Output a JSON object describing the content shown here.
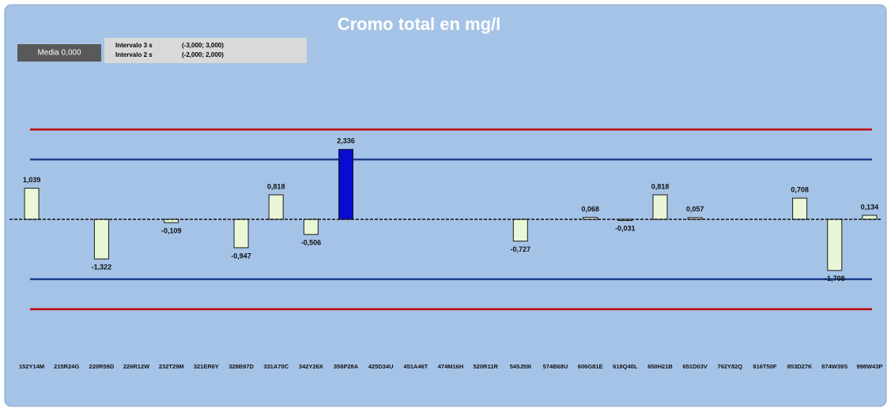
{
  "chart_data": {
    "type": "bar",
    "title": "Cromo total en mg/l",
    "mean_label": "Media 0,000",
    "mean": 0,
    "intervals": [
      {
        "label": "Intervalo 3 s",
        "range_label": "(-3,000; 3,000)",
        "low": -3,
        "high": 3,
        "color": "#c00000"
      },
      {
        "label": "Intervalo 2 s",
        "range_label": "(-2,000; 2,000)",
        "low": -2,
        "high": 2,
        "color": "#1f3f8f"
      }
    ],
    "categories": [
      "152Y14M",
      "215R24G",
      "220R59D",
      "226R12W",
      "232T29M",
      "321ER6Y",
      "328B97D",
      "331A70C",
      "342Y26X",
      "356P28A",
      "425D34U",
      "451A46T",
      "474M16H",
      "520R11R",
      "545J59I",
      "574B68U",
      "606G81E",
      "618Q40L",
      "650H21B",
      "651D03V",
      "762Y82Q",
      "816T50F",
      "853D27K",
      "874W39S",
      "998W43P"
    ],
    "values": [
      1.039,
      null,
      -1.322,
      null,
      -0.109,
      null,
      -0.947,
      0.818,
      -0.506,
      2.336,
      null,
      null,
      null,
      null,
      -0.727,
      null,
      0.068,
      -0.031,
      0.818,
      0.057,
      null,
      null,
      0.708,
      -1.708,
      0.134
    ],
    "value_labels": [
      "1,039",
      null,
      "-1,322",
      null,
      "-0,109",
      null,
      "-0,947",
      "0,818",
      "-0,506",
      "2,336",
      null,
      null,
      null,
      null,
      "-0,727",
      null,
      "0,068",
      "-0,031",
      "0,818",
      "0,057",
      null,
      null,
      "0,708",
      "-1,708",
      "0,134"
    ],
    "color": "#eaf7d6",
    "highlight_index": 9,
    "highlight_color": "#0a0ad0",
    "ylim": [
      -4.4,
      3.9
    ]
  }
}
